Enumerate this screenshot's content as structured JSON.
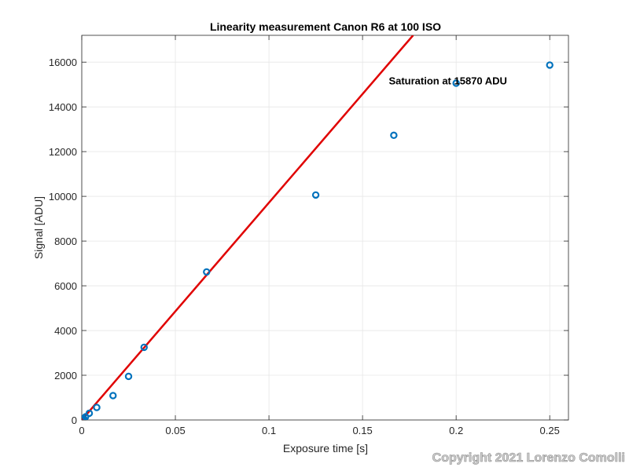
{
  "chart_data": {
    "type": "scatter",
    "title": "Linearity measurement Canon R6 at 100 ISO",
    "xlabel": "Exposure time [s]",
    "ylabel": "Signal [ADU]",
    "xlim": [
      0,
      0.26
    ],
    "ylim": [
      0,
      17200
    ],
    "xticks": [
      0,
      0.05,
      0.1,
      0.15,
      0.2,
      0.25
    ],
    "xtick_labels": [
      "0",
      "0.05",
      "0.1",
      "0.15",
      "0.2",
      "0.25"
    ],
    "yticks": [
      0,
      2000,
      4000,
      6000,
      8000,
      10000,
      12000,
      14000,
      16000
    ],
    "ytick_labels": [
      "0",
      "2000",
      "4000",
      "6000",
      "8000",
      "10000",
      "12000",
      "14000",
      "16000"
    ],
    "grid": true,
    "series": [
      {
        "type": "scatter",
        "marker": "circle-open",
        "color": "#0072BD",
        "x": [
          0.000125,
          0.00025,
          0.0005,
          0.001,
          0.002,
          0.004,
          0.008,
          0.0167,
          0.025,
          0.0333,
          0.0667,
          0.125,
          0.1667,
          0.2,
          0.25
        ],
        "y": [
          8,
          16,
          33,
          66,
          140,
          300,
          560,
          1090,
          1950,
          3250,
          6620,
          10060,
          12730,
          15060,
          15870
        ]
      },
      {
        "type": "line",
        "color": "#E00000",
        "x": [
          0,
          0.177
        ],
        "y": [
          0,
          17200
        ]
      }
    ],
    "annotations": [
      {
        "text": "Saturation at 15870 ADU",
        "x": 0.164,
        "y": 15000
      }
    ]
  },
  "watermark": "Copyright 2021 Lorenzo Comolli"
}
